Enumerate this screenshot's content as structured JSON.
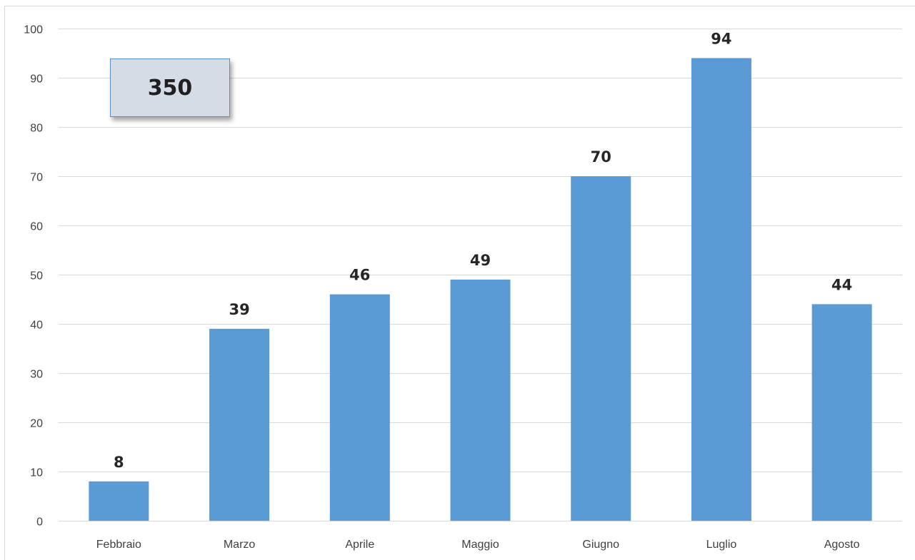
{
  "chart_data": {
    "type": "bar",
    "categories": [
      "Febbraio",
      "Marzo",
      "Aprile",
      "Maggio",
      "Giugno",
      "Luglio",
      "Agosto"
    ],
    "values": [
      8,
      39,
      46,
      49,
      70,
      94,
      44
    ],
    "title": "",
    "xlabel": "",
    "ylabel": "",
    "ylim": [
      0,
      100
    ],
    "yticks": [
      0,
      10,
      20,
      30,
      40,
      50,
      60,
      70,
      80,
      90,
      100
    ],
    "grid": true,
    "data_labels": true,
    "bar_color": "#5b9bd5"
  },
  "total_box": {
    "value": "350"
  }
}
